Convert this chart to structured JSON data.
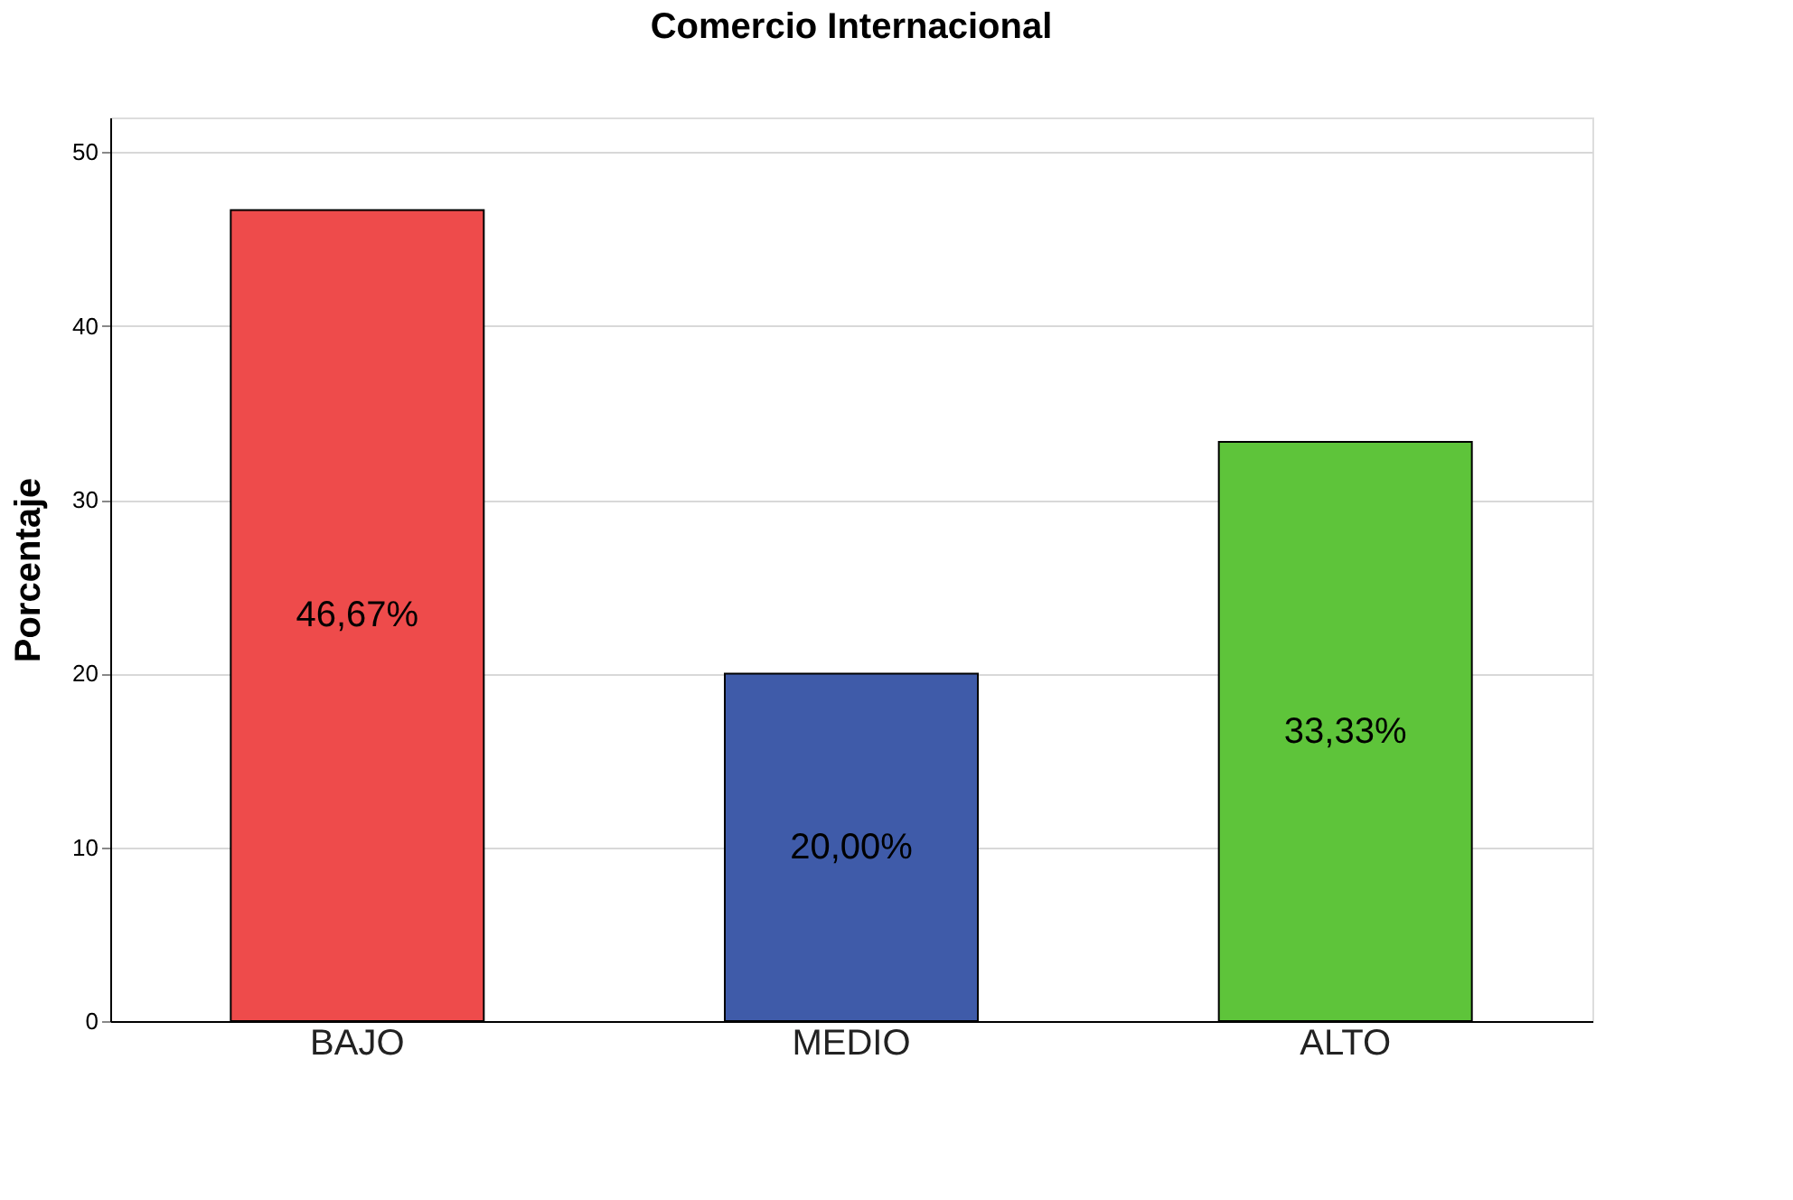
{
  "chart_data": {
    "type": "bar",
    "title": "Comercio Internacional",
    "ylabel": "Porcentaje",
    "categories": [
      "BAJO",
      "MEDIO",
      "ALTO"
    ],
    "values": [
      46.67,
      20.0,
      33.33
    ],
    "colors": [
      "#ee4b4b",
      "#3f5ba9",
      "#5ec43a"
    ],
    "value_labels": [
      "46,67%",
      "20,00%",
      "33,33%"
    ],
    "ylim": [
      0,
      52
    ],
    "yticks": [
      0,
      10,
      20,
      30,
      40,
      50
    ],
    "grid": "y"
  }
}
